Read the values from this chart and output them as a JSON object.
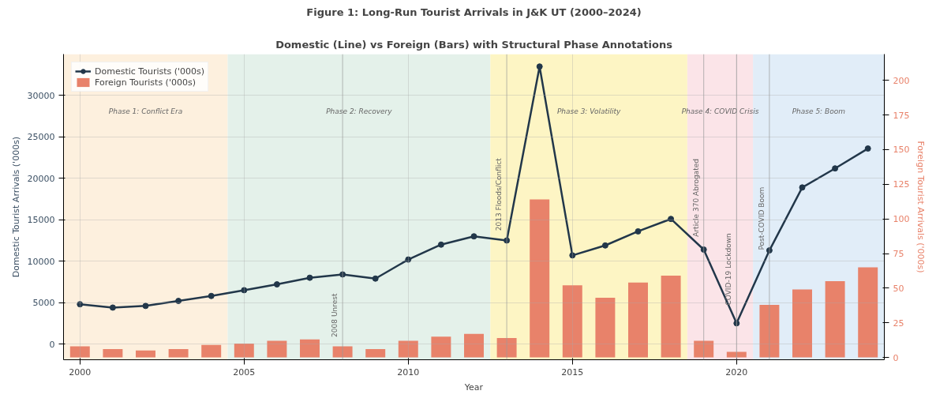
{
  "chart_data": {
    "type": "line",
    "title": "Figure 1: Long-Run Tourist Arrivals in J&K UT (2000–2024)",
    "subtitle": "Domestic (Line) vs Foreign (Bars) with Structural Phase Annotations",
    "xlabel": "Year",
    "ylabel": "Domestic Tourist Arrivals ('000s)",
    "y2label": "Foreign Tourist Arrivals ('000s)",
    "x": [
      2000,
      2001,
      2002,
      2003,
      2004,
      2005,
      2006,
      2007,
      2008,
      2009,
      2010,
      2011,
      2012,
      2013,
      2014,
      2015,
      2016,
      2017,
      2018,
      2019,
      2020,
      2021,
      2022,
      2023,
      2024
    ],
    "series": [
      {
        "name": "Domestic Tourists ('000s)",
        "color": "#22374a",
        "marker": "circle",
        "values": [
          4800,
          4400,
          4600,
          5200,
          5800,
          6500,
          7200,
          8000,
          8400,
          7900,
          10200,
          12000,
          13000,
          12500,
          33500,
          10700,
          11900,
          13600,
          15100,
          11400,
          2500,
          11300,
          18900,
          21200,
          23600
        ]
      },
      {
        "name": "Foreign Tourists ('000s)",
        "type": "bar",
        "axis": "y2",
        "color": "#e8826a",
        "values": [
          8,
          6,
          5,
          6,
          9,
          10,
          12,
          13,
          8,
          6,
          12,
          15,
          17,
          14,
          114,
          52,
          43,
          54,
          59,
          12,
          4,
          38,
          49,
          55,
          65
        ]
      }
    ],
    "xlim": [
      1999.5,
      2024.5
    ],
    "xticks": [
      2000,
      2005,
      2010,
      2015,
      2020
    ],
    "ylim": [
      -1900,
      35000
    ],
    "yticks": [
      0,
      5000,
      10000,
      15000,
      20000,
      25000,
      30000
    ],
    "y2lim": [
      -1.7,
      219
    ],
    "y2ticks": [
      0,
      25,
      50,
      75,
      100,
      125,
      150,
      175,
      200
    ],
    "bands": [
      {
        "axis": "x",
        "from": 1999.5,
        "to": 2004.5,
        "label": "Phase 1: Conflict Era",
        "color": "#fdf0de"
      },
      {
        "axis": "x",
        "from": 2004.5,
        "to": 2012.5,
        "label": "Phase 2: Recovery",
        "color": "#e4f1ea"
      },
      {
        "axis": "x",
        "from": 2012.5,
        "to": 2018.5,
        "label": "Phase 3: Volatility",
        "color": "#fdf5c4"
      },
      {
        "axis": "x",
        "from": 2018.5,
        "to": 2020.5,
        "label": "Phase 4: COVID Crisis",
        "color": "#fbe4e8"
      },
      {
        "axis": "x",
        "from": 2020.5,
        "to": 2024.5,
        "label": "Phase 5: Boom",
        "color": "#e1edf8"
      }
    ],
    "ref_lines": [
      {
        "axis": "x",
        "value": 2008,
        "label": "2008 Unrest",
        "color": "#9a9a9a"
      },
      {
        "axis": "x",
        "value": 2013,
        "label": "2013 Floods/Conflict",
        "color": "#9a9a9a"
      },
      {
        "axis": "x",
        "value": 2019,
        "label": "Article 370 Abrogated",
        "color": "#9a9a9a"
      },
      {
        "axis": "x",
        "value": 2020,
        "label": "COVID-19 Lockdown",
        "color": "#9a9a9a"
      },
      {
        "axis": "x",
        "value": 2021,
        "label": "Post-COVID Boom",
        "color": "#9a9a9a"
      }
    ],
    "grid": true,
    "legend": "top left"
  }
}
